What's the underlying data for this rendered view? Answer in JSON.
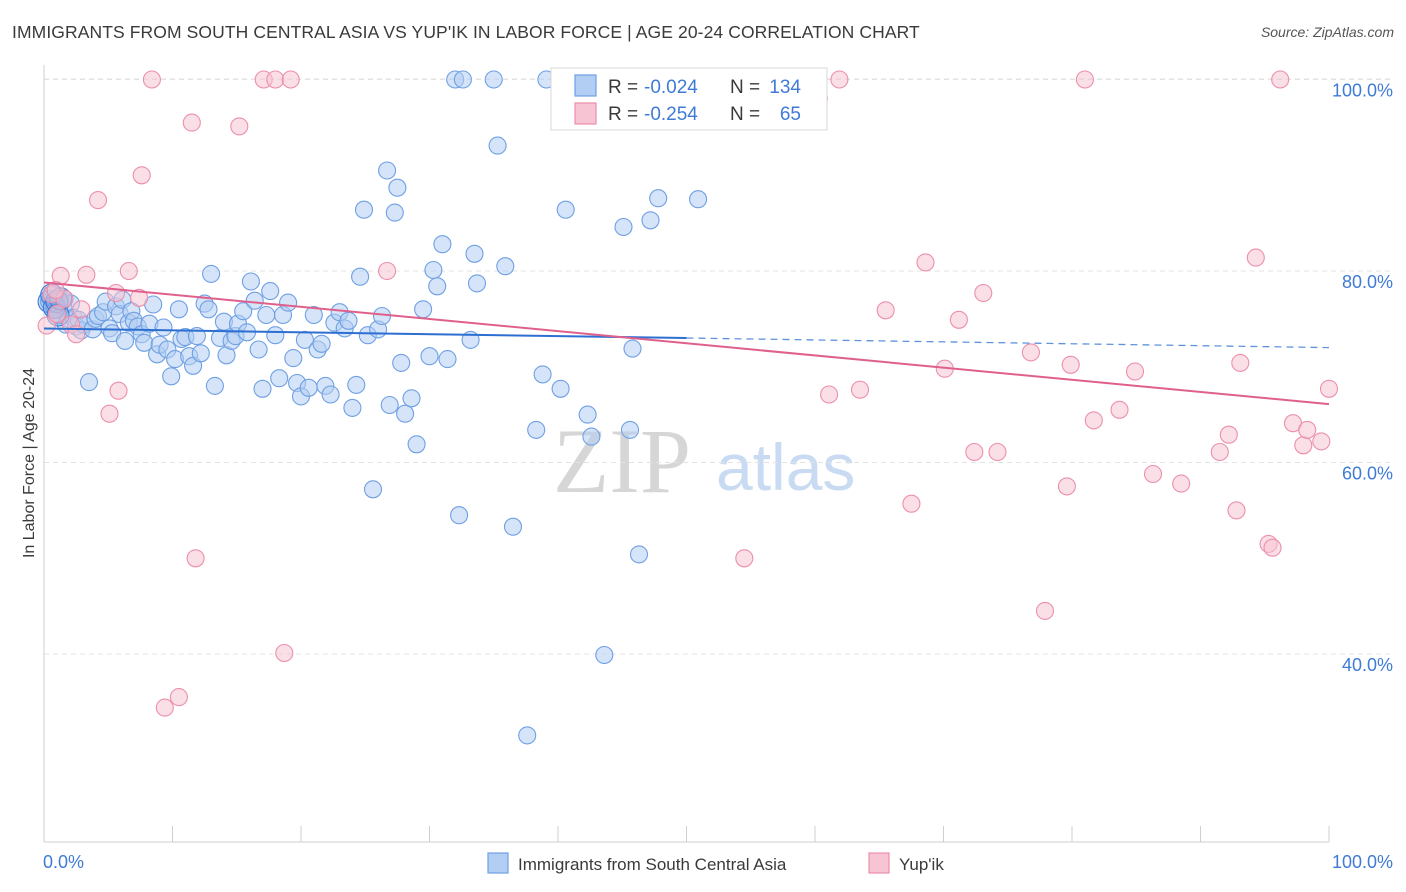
{
  "title": "IMMIGRANTS FROM SOUTH CENTRAL ASIA VS YUP'IK IN LABOR FORCE | AGE 20-24 CORRELATION CHART",
  "source": "Source: ZipAtlas.com",
  "watermark": {
    "zip": "ZIP",
    "atlas": "atlas"
  },
  "chart_data": {
    "type": "scatter",
    "xlabel": "",
    "ylabel": "In Labor Force | Age 20-24",
    "xlim": [
      0,
      100
    ],
    "ylim": [
      20,
      102
    ],
    "x_tick_labels": {
      "min": "0.0%",
      "max": "100.0%"
    },
    "y_ticks": [
      {
        "value": 100,
        "label": "100.0%"
      },
      {
        "value": 80,
        "label": "80.0%"
      },
      {
        "value": 60,
        "label": "60.0%"
      },
      {
        "value": 40,
        "label": "40.0%"
      }
    ],
    "grid": true,
    "legend_placement": "top-center",
    "legend": [
      {
        "r_label": "R =",
        "r_value": "-0.024",
        "n_label": "N =",
        "n_value": "134"
      },
      {
        "r_label": "R =",
        "r_value": "-0.254",
        "n_label": "N =",
        "n_value": " 65"
      }
    ],
    "series": [
      {
        "name": "Immigrants from South Central Asia",
        "color": "#6fa0e4",
        "fill": "#b3cef3",
        "trend": {
          "x0": 0,
          "y0": 74.0,
          "x1": 50,
          "y1": 73.0,
          "dash_to_x": 100,
          "dash_to_y": 72.0,
          "color": "#2d6fd1"
        },
        "points": [
          [
            0.4,
            76.8
          ],
          [
            0.6,
            77.5
          ],
          [
            0.8,
            76.2
          ],
          [
            1.0,
            76.8
          ],
          [
            1.1,
            75.4
          ],
          [
            1.3,
            77.1
          ],
          [
            1.5,
            76.3
          ],
          [
            1.7,
            74.4
          ],
          [
            1.9,
            75.0
          ],
          [
            2.1,
            76.6
          ],
          [
            2.3,
            75.1
          ],
          [
            2.5,
            74.2
          ],
          [
            2.7,
            74.9
          ],
          [
            2.9,
            73.8
          ],
          [
            3.1,
            74.4
          ],
          [
            3.5,
            68.4
          ],
          [
            3.8,
            73.9
          ],
          [
            4.0,
            75.0
          ],
          [
            4.2,
            75.3
          ],
          [
            4.6,
            75.7
          ],
          [
            4.8,
            76.8
          ],
          [
            5.1,
            74.0
          ],
          [
            5.3,
            73.5
          ],
          [
            5.6,
            76.3
          ],
          [
            5.9,
            75.5
          ],
          [
            6.1,
            77.0
          ],
          [
            6.3,
            72.7
          ],
          [
            6.6,
            74.6
          ],
          [
            6.8,
            75.8
          ],
          [
            7.0,
            74.8
          ],
          [
            7.3,
            74.2
          ],
          [
            7.6,
            73.4
          ],
          [
            7.8,
            72.5
          ],
          [
            8.2,
            74.5
          ],
          [
            8.5,
            76.5
          ],
          [
            8.8,
            71.3
          ],
          [
            9.0,
            72.3
          ],
          [
            9.3,
            74.1
          ],
          [
            9.6,
            71.8
          ],
          [
            9.9,
            69.0
          ],
          [
            10.2,
            70.8
          ],
          [
            10.5,
            76.0
          ],
          [
            10.7,
            72.9
          ],
          [
            11.0,
            73.1
          ],
          [
            11.3,
            71.1
          ],
          [
            11.6,
            70.1
          ],
          [
            11.9,
            73.2
          ],
          [
            12.2,
            71.4
          ],
          [
            12.5,
            76.6
          ],
          [
            12.8,
            76.0
          ],
          [
            13.0,
            79.7
          ],
          [
            13.3,
            68.0
          ],
          [
            13.7,
            73.0
          ],
          [
            14.0,
            74.7
          ],
          [
            14.2,
            71.2
          ],
          [
            14.6,
            72.7
          ],
          [
            14.9,
            73.2
          ],
          [
            15.1,
            74.5
          ],
          [
            15.5,
            75.8
          ],
          [
            15.8,
            73.6
          ],
          [
            16.1,
            78.9
          ],
          [
            16.4,
            76.9
          ],
          [
            16.7,
            71.8
          ],
          [
            17.0,
            67.7
          ],
          [
            17.3,
            75.4
          ],
          [
            17.6,
            77.9
          ],
          [
            18.0,
            73.3
          ],
          [
            18.3,
            68.8
          ],
          [
            18.6,
            75.4
          ],
          [
            19.0,
            76.7
          ],
          [
            19.4,
            70.9
          ],
          [
            19.7,
            68.3
          ],
          [
            20.0,
            66.9
          ],
          [
            20.3,
            72.8
          ],
          [
            20.6,
            67.8
          ],
          [
            21.0,
            75.4
          ],
          [
            21.3,
            71.8
          ],
          [
            21.6,
            72.4
          ],
          [
            21.9,
            68.0
          ],
          [
            22.3,
            67.1
          ],
          [
            22.6,
            74.6
          ],
          [
            23.0,
            75.7
          ],
          [
            23.4,
            74.0
          ],
          [
            23.7,
            74.8
          ],
          [
            24.0,
            65.7
          ],
          [
            24.3,
            68.1
          ],
          [
            24.6,
            79.4
          ],
          [
            24.9,
            86.4
          ],
          [
            25.2,
            73.3
          ],
          [
            25.6,
            57.2
          ],
          [
            26.0,
            73.9
          ],
          [
            26.3,
            75.3
          ],
          [
            26.7,
            90.5
          ],
          [
            26.9,
            66.0
          ],
          [
            27.3,
            86.1
          ],
          [
            27.5,
            88.7
          ],
          [
            27.8,
            70.4
          ],
          [
            28.1,
            65.1
          ],
          [
            28.6,
            66.7
          ],
          [
            29.0,
            61.9
          ],
          [
            29.5,
            76.0
          ],
          [
            30.0,
            71.1
          ],
          [
            30.3,
            80.1
          ],
          [
            30.6,
            78.4
          ],
          [
            31.0,
            82.8
          ],
          [
            31.4,
            70.8
          ],
          [
            32.0,
            100.0
          ],
          [
            32.3,
            54.5
          ],
          [
            32.6,
            100.0
          ],
          [
            33.2,
            72.8
          ],
          [
            33.5,
            81.8
          ],
          [
            33.7,
            78.7
          ],
          [
            35.0,
            100.0
          ],
          [
            35.3,
            93.1
          ],
          [
            35.9,
            80.5
          ],
          [
            36.5,
            53.3
          ],
          [
            37.6,
            31.5
          ],
          [
            38.3,
            63.4
          ],
          [
            38.8,
            69.2
          ],
          [
            39.1,
            100.0
          ],
          [
            40.2,
            67.7
          ],
          [
            40.6,
            86.4
          ],
          [
            42.3,
            65.0
          ],
          [
            42.6,
            62.7
          ],
          [
            43.2,
            100.0
          ],
          [
            43.6,
            39.9
          ],
          [
            45.1,
            84.6
          ],
          [
            45.6,
            63.4
          ],
          [
            45.8,
            71.9
          ],
          [
            46.3,
            50.4
          ],
          [
            47.2,
            85.3
          ],
          [
            47.8,
            87.6
          ],
          [
            50.9,
            87.5
          ],
          [
            1.2,
            76.9
          ]
        ]
      },
      {
        "name": "Yup'ik",
        "color": "#ec8fab",
        "fill": "#f6c4d3",
        "trend": {
          "x0": 0,
          "y0": 78.8,
          "x1": 100,
          "y1": 66.1,
          "color": "#e0608c"
        },
        "points": [
          [
            0.2,
            74.3
          ],
          [
            0.6,
            77.6
          ],
          [
            1.0,
            75.5
          ],
          [
            1.3,
            79.5
          ],
          [
            1.6,
            77.1
          ],
          [
            2.1,
            74.4
          ],
          [
            2.5,
            73.4
          ],
          [
            3.3,
            79.6
          ],
          [
            4.2,
            87.4
          ],
          [
            5.1,
            65.1
          ],
          [
            5.6,
            77.7
          ],
          [
            5.8,
            67.5
          ],
          [
            6.6,
            80.0
          ],
          [
            7.4,
            77.2
          ],
          [
            7.6,
            90.0
          ],
          [
            8.4,
            100.0
          ],
          [
            9.4,
            34.4
          ],
          [
            10.5,
            35.5
          ],
          [
            11.5,
            95.5
          ],
          [
            11.8,
            50.0
          ],
          [
            15.2,
            95.1
          ],
          [
            17.1,
            100.0
          ],
          [
            18.0,
            100.0
          ],
          [
            18.7,
            40.1
          ],
          [
            19.2,
            100.0
          ],
          [
            26.7,
            80.0
          ],
          [
            54.5,
            50.0
          ],
          [
            60.1,
            100.0
          ],
          [
            60.3,
            98.0
          ],
          [
            61.1,
            67.1
          ],
          [
            61.9,
            100.0
          ],
          [
            63.5,
            67.6
          ],
          [
            65.5,
            75.9
          ],
          [
            67.5,
            55.7
          ],
          [
            68.6,
            80.9
          ],
          [
            70.1,
            69.8
          ],
          [
            71.2,
            74.9
          ],
          [
            72.4,
            61.1
          ],
          [
            73.1,
            77.7
          ],
          [
            74.2,
            61.1
          ],
          [
            76.8,
            71.5
          ],
          [
            77.9,
            44.5
          ],
          [
            79.6,
            57.5
          ],
          [
            79.9,
            70.2
          ],
          [
            81.0,
            100.0
          ],
          [
            81.7,
            64.4
          ],
          [
            83.7,
            65.5
          ],
          [
            84.9,
            69.5
          ],
          [
            86.3,
            58.8
          ],
          [
            88.5,
            57.8
          ],
          [
            91.5,
            61.1
          ],
          [
            92.2,
            62.9
          ],
          [
            92.8,
            55.0
          ],
          [
            93.1,
            70.4
          ],
          [
            94.3,
            81.4
          ],
          [
            95.3,
            51.5
          ],
          [
            95.6,
            51.1
          ],
          [
            96.2,
            100.0
          ],
          [
            97.2,
            64.1
          ],
          [
            98.0,
            61.8
          ],
          [
            98.3,
            63.4
          ],
          [
            99.4,
            62.2
          ],
          [
            100.0,
            67.7
          ],
          [
            0.9,
            78.0
          ],
          [
            2.9,
            76.0
          ]
        ]
      }
    ],
    "bottom_legend": [
      "Immigrants from South Central Asia",
      "Yup'ik"
    ]
  }
}
